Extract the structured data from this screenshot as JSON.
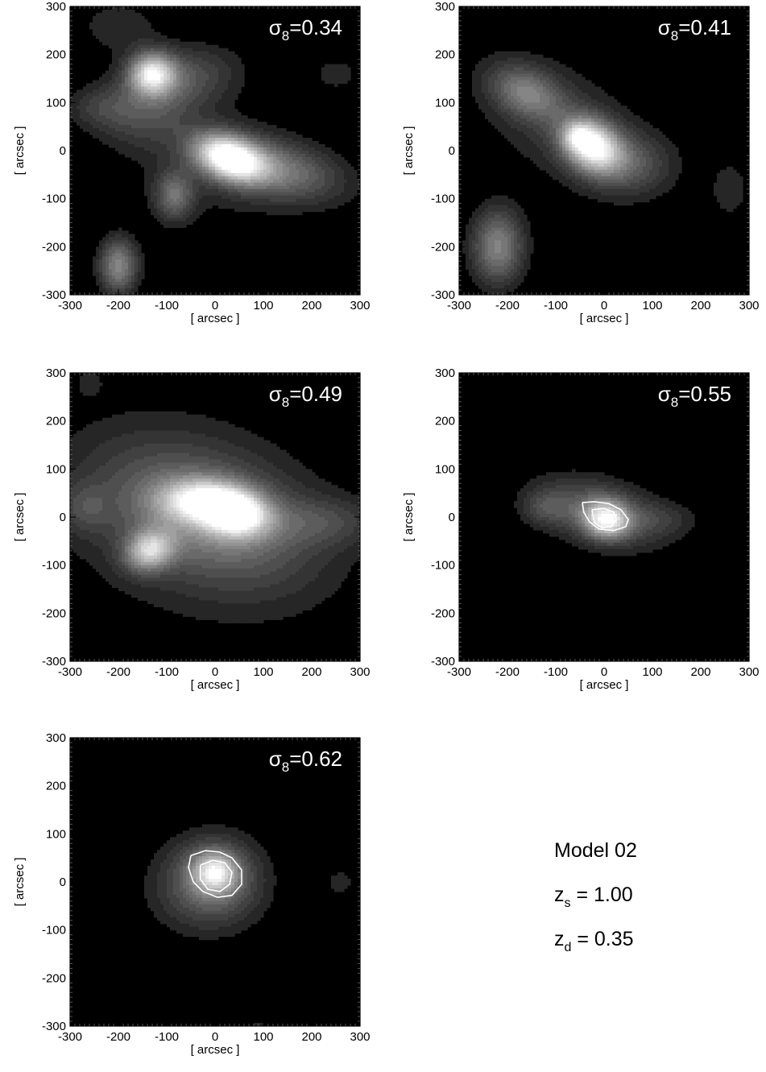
{
  "caption": {
    "model": "Model 02",
    "zs": {
      "base": "z",
      "sub": "s",
      "value": " = 1.00"
    },
    "zd": {
      "base": "z",
      "sub": "d",
      "value": " = 0.35"
    }
  },
  "axes": {
    "xlabel": "[ arcsec ]",
    "ylabel": "[ arcsec ]",
    "ticks": [
      -300,
      -200,
      -100,
      0,
      100,
      200,
      300
    ],
    "xlim": [
      -300,
      300
    ],
    "ylim": [
      -300,
      300
    ]
  },
  "chart_data": [
    {
      "type": "heatmap",
      "label": {
        "symbol": "σ",
        "sub": "8",
        "value": "=0.34"
      },
      "xlabel": "[ arcsec ]",
      "ylabel": "[ arcsec ]",
      "xlim": [
        -300,
        300
      ],
      "ylim": [
        -300,
        300
      ],
      "peaks": [
        {
          "x": 30,
          "y": -15,
          "sx": 50,
          "sy": 30,
          "amp": 1.0,
          "angle": -20
        },
        {
          "x": -130,
          "y": 160,
          "sx": 32,
          "sy": 30,
          "amp": 0.78,
          "angle": 0
        },
        {
          "x": -75,
          "y": 150,
          "sx": 85,
          "sy": 45,
          "amp": 0.3,
          "angle": 10
        },
        {
          "x": -200,
          "y": -240,
          "sx": 28,
          "sy": 40,
          "amp": 0.52,
          "angle": 0
        },
        {
          "x": -85,
          "y": -95,
          "sx": 28,
          "sy": 35,
          "amp": 0.38,
          "angle": 0
        },
        {
          "x": 130,
          "y": -40,
          "sx": 95,
          "sy": 42,
          "amp": 0.42,
          "angle": -12
        },
        {
          "x": -150,
          "y": 70,
          "sx": 70,
          "sy": 45,
          "amp": 0.18,
          "angle": 0
        },
        {
          "x": -200,
          "y": 260,
          "sx": 60,
          "sy": 40,
          "amp": 0.14,
          "angle": 0
        },
        {
          "x": -240,
          "y": 90,
          "sx": 50,
          "sy": 30,
          "amp": 0.14,
          "angle": 0
        },
        {
          "x": 250,
          "y": 160,
          "sx": 40,
          "sy": 30,
          "amp": 0.12,
          "angle": 0
        },
        {
          "x": -20,
          "y": -20,
          "sx": 140,
          "sy": 90,
          "amp": 0.12,
          "angle": -20
        }
      ],
      "critical_curves": []
    },
    {
      "type": "heatmap",
      "label": {
        "symbol": "σ",
        "sub": "8",
        "value": "=0.41"
      },
      "xlabel": "[ arcsec ]",
      "ylabel": "[ arcsec ]",
      "xlim": [
        -300,
        300
      ],
      "ylim": [
        -300,
        300
      ],
      "peaks": [
        {
          "x": -25,
          "y": 10,
          "sx": 45,
          "sy": 35,
          "amp": 0.95,
          "angle": -35
        },
        {
          "x": -55,
          "y": 30,
          "sx": 20,
          "sy": 18,
          "amp": 0.3,
          "angle": 0
        },
        {
          "x": -160,
          "y": 120,
          "sx": 55,
          "sy": 35,
          "amp": 0.4,
          "angle": -25
        },
        {
          "x": -220,
          "y": -200,
          "sx": 38,
          "sy": 55,
          "amp": 0.5,
          "angle": 0
        },
        {
          "x": 60,
          "y": -30,
          "sx": 60,
          "sy": 45,
          "amp": 0.25,
          "angle": 0
        },
        {
          "x": 260,
          "y": -80,
          "sx": 30,
          "sy": 45,
          "amp": 0.14,
          "angle": 0
        },
        {
          "x": -90,
          "y": 60,
          "sx": 140,
          "sy": 90,
          "amp": 0.16,
          "angle": -30
        }
      ],
      "critical_curves": []
    },
    {
      "type": "heatmap",
      "label": {
        "symbol": "σ",
        "sub": "8",
        "value": "=0.49"
      },
      "xlabel": "[ arcsec ]",
      "ylabel": "[ arcsec ]",
      "xlim": [
        -300,
        300
      ],
      "ylim": [
        -300,
        300
      ],
      "peaks": [
        {
          "x": 40,
          "y": 10,
          "sx": 48,
          "sy": 32,
          "amp": 0.95,
          "angle": -10
        },
        {
          "x": -40,
          "y": 35,
          "sx": 55,
          "sy": 30,
          "amp": 0.55,
          "angle": 0
        },
        {
          "x": -135,
          "y": -70,
          "sx": 35,
          "sy": 28,
          "amp": 0.65,
          "angle": 20
        },
        {
          "x": -20,
          "y": 0,
          "sx": 150,
          "sy": 85,
          "amp": 0.4,
          "angle": -20
        },
        {
          "x": -270,
          "y": 20,
          "sx": 35,
          "sy": 35,
          "amp": 0.16,
          "angle": 0
        },
        {
          "x": 230,
          "y": -10,
          "sx": 80,
          "sy": 35,
          "amp": 0.18,
          "angle": 0
        },
        {
          "x": -260,
          "y": 280,
          "sx": 20,
          "sy": 20,
          "amp": 0.1,
          "angle": 0
        },
        {
          "x": -50,
          "y": 0,
          "sx": 230,
          "sy": 170,
          "amp": 0.14,
          "angle": -20
        }
      ],
      "critical_curves": []
    },
    {
      "type": "heatmap",
      "label": {
        "symbol": "σ",
        "sub": "8",
        "value": "=0.55"
      },
      "xlabel": "[ arcsec ]",
      "ylabel": "[ arcsec ]",
      "xlim": [
        -300,
        300
      ],
      "ylim": [
        -300,
        300
      ],
      "peaks": [
        {
          "x": 5,
          "y": -5,
          "sx": 32,
          "sy": 26,
          "amp": 0.75,
          "angle": -10
        },
        {
          "x": -10,
          "y": 10,
          "sx": 95,
          "sy": 48,
          "amp": 0.35,
          "angle": -15
        },
        {
          "x": -120,
          "y": 20,
          "sx": 35,
          "sy": 25,
          "amp": 0.18,
          "angle": 0
        },
        {
          "x": 120,
          "y": -5,
          "sx": 55,
          "sy": 25,
          "amp": 0.12,
          "angle": 0
        }
      ],
      "critical_curves": [
        [
          [
            -45,
            30
          ],
          [
            -20,
            32
          ],
          [
            10,
            28
          ],
          [
            35,
            15
          ],
          [
            50,
            -5
          ],
          [
            45,
            -20
          ],
          [
            20,
            -28
          ],
          [
            -10,
            -25
          ],
          [
            -30,
            -10
          ],
          [
            -42,
            10
          ],
          [
            -45,
            30
          ]
        ],
        [
          [
            -25,
            15
          ],
          [
            0,
            18
          ],
          [
            20,
            10
          ],
          [
            25,
            -5
          ],
          [
            15,
            -20
          ],
          [
            -5,
            -22
          ],
          [
            -20,
            -12
          ],
          [
            -25,
            15
          ]
        ]
      ]
    },
    {
      "type": "heatmap",
      "label": {
        "symbol": "σ",
        "sub": "8",
        "value": "=0.62"
      },
      "xlabel": "[ arcsec ]",
      "ylabel": "[ arcsec ]",
      "xlim": [
        -300,
        300
      ],
      "ylim": [
        -300,
        300
      ],
      "peaks": [
        {
          "x": 0,
          "y": 20,
          "sx": 30,
          "sy": 28,
          "amp": 0.6,
          "angle": 0
        },
        {
          "x": 0,
          "y": 10,
          "sx": 65,
          "sy": 60,
          "amp": 0.35,
          "angle": 0
        },
        {
          "x": -30,
          "y": -20,
          "sx": 90,
          "sy": 70,
          "amp": 0.15,
          "angle": 0
        },
        {
          "x": 260,
          "y": 0,
          "sx": 25,
          "sy": 25,
          "amp": 0.12,
          "angle": 0
        },
        {
          "x": 90,
          "y": -300,
          "sx": 30,
          "sy": 20,
          "amp": 0.1,
          "angle": 0
        }
      ],
      "critical_curves": [
        [
          [
            -50,
            55
          ],
          [
            -20,
            65
          ],
          [
            10,
            62
          ],
          [
            35,
            50
          ],
          [
            55,
            25
          ],
          [
            55,
            -5
          ],
          [
            35,
            -28
          ],
          [
            5,
            -32
          ],
          [
            -25,
            -20
          ],
          [
            -45,
            0
          ],
          [
            -55,
            30
          ],
          [
            -50,
            55
          ]
        ],
        [
          [
            -30,
            35
          ],
          [
            -5,
            45
          ],
          [
            20,
            40
          ],
          [
            35,
            20
          ],
          [
            30,
            -5
          ],
          [
            10,
            -20
          ],
          [
            -15,
            -15
          ],
          [
            -30,
            5
          ],
          [
            -30,
            35
          ]
        ]
      ]
    }
  ]
}
